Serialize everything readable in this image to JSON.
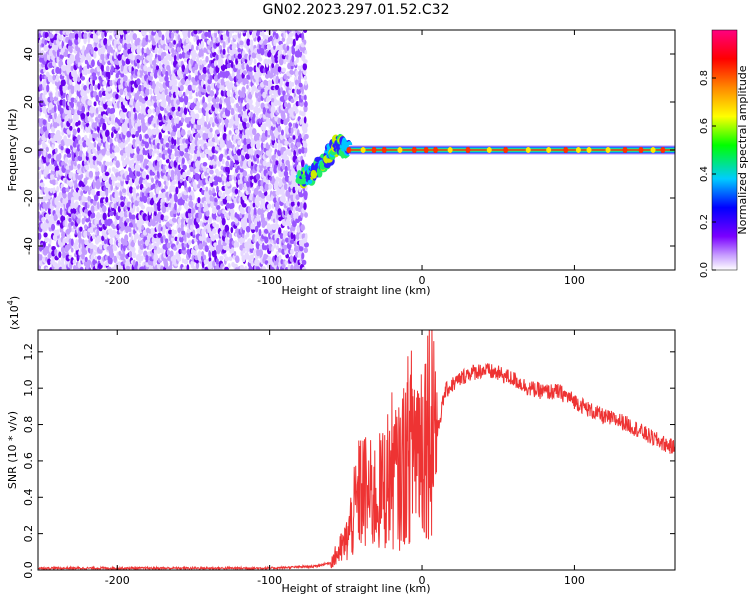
{
  "figure": {
    "title": "GN02.2023.297.01.52.C32"
  },
  "chart_data": [
    {
      "type": "heatmap",
      "xlabel": "Height of straight line (km)",
      "ylabel": "Frequency (Hz)",
      "xlim": [
        -252,
        166
      ],
      "ylim": [
        -50,
        50
      ],
      "xticks": [
        -200,
        -100,
        0,
        100
      ],
      "xtick_labels": [
        "-200",
        "-100",
        "0",
        "100"
      ],
      "yticks": [
        -40,
        -20,
        0,
        20,
        40
      ],
      "ytick_labels": [
        "-40",
        "-20",
        "0",
        "20",
        "40"
      ],
      "noise_region_x": [
        -252,
        -76
      ],
      "transition": [
        {
          "x": -80,
          "freq": -12
        },
        {
          "x": -70,
          "freq": -9
        },
        {
          "x": -62,
          "freq": -3
        },
        {
          "x": -55,
          "freq": 3
        },
        {
          "x": -48,
          "freq": 0
        }
      ],
      "tone_start_x": -48,
      "tone_frequency": 0,
      "colorbar": {
        "label": "Normalized spectral amplitude",
        "range": [
          0,
          1
        ],
        "ticks": [
          0.0,
          0.2,
          0.4,
          0.6,
          0.8
        ],
        "tick_labels": [
          "0.0",
          "0.2",
          "0.4",
          "0.6",
          "0.8"
        ],
        "colors": [
          "#ffffff",
          "#7a00ff",
          "#0000ff",
          "#00ccff",
          "#00ff00",
          "#ffff00",
          "#ff8800",
          "#ff0000",
          "#ff0080"
        ]
      }
    },
    {
      "type": "line",
      "xlabel": "Height of straight line (km)",
      "ylabel": "SNR (10 * v/v)",
      "multiplier": "(x10",
      "multiplier_exp": "4",
      "multiplier_close": ")",
      "xlim": [
        -252,
        166
      ],
      "ylim": [
        0,
        1.32
      ],
      "xticks": [
        -200,
        -100,
        0,
        100
      ],
      "xtick_labels": [
        "-200",
        "-100",
        "0",
        "100"
      ],
      "yticks": [
        0.0,
        0.2,
        0.4,
        0.6,
        0.8,
        1.0,
        1.2
      ],
      "ytick_labels": [
        "0.0",
        "0.2",
        "0.4",
        "0.6",
        "0.8",
        "1.0",
        "1.2"
      ],
      "color": "#ee3333",
      "series": [
        {
          "x": [
            -252,
            -200,
            -150,
            -100,
            -70,
            -60,
            -50,
            -45,
            -40,
            -35,
            -30,
            -25,
            -20,
            -15,
            -10,
            -5,
            0,
            5,
            8,
            10,
            15,
            20,
            30,
            40,
            50,
            60,
            70,
            80,
            90,
            100,
            110,
            120,
            130,
            140,
            150,
            160,
            166
          ],
          "y": [
            0.01,
            0.01,
            0.01,
            0.01,
            0.02,
            0.04,
            0.15,
            0.3,
            0.45,
            0.4,
            0.4,
            0.45,
            0.55,
            0.5,
            0.65,
            0.72,
            0.72,
            0.85,
            0.9,
            0.75,
            0.98,
            1.02,
            1.08,
            1.1,
            1.08,
            1.05,
            1.0,
            0.98,
            0.98,
            0.93,
            0.88,
            0.84,
            0.82,
            0.78,
            0.73,
            0.69,
            0.67
          ]
        }
      ]
    }
  ]
}
